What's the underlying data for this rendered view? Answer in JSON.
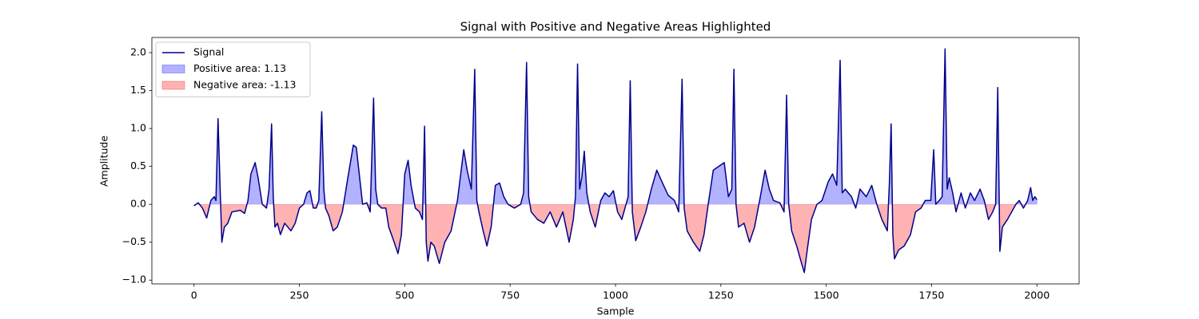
{
  "chart_data": {
    "type": "area-line",
    "title": "Signal with Positive and Negative Areas Highlighted",
    "x_label": "Sample",
    "y_label": "Amplitude",
    "xlim": [
      -100,
      2100
    ],
    "ylim": [
      -1.05,
      2.2
    ],
    "xticks": [
      0,
      250,
      500,
      750,
      1000,
      1250,
      1500,
      1750,
      2000
    ],
    "yticks": [
      {
        "value": -1.0,
        "label": "−1.0"
      },
      {
        "value": -0.5,
        "label": "−0.5"
      },
      {
        "value": 0.0,
        "label": "0.0"
      },
      0.5,
      {
        "value": 1.0,
        "label": "1.0"
      },
      1.5,
      {
        "value": 2.0,
        "label": "2.0"
      }
    ],
    "legend": "upper left",
    "series": [
      {
        "name": "Signal",
        "color": "#00008b",
        "x": [
          0,
          10,
          20,
          30,
          40,
          48,
          52,
          57,
          62,
          66,
          72,
          80,
          90,
          110,
          120,
          128,
          135,
          145,
          152,
          162,
          172,
          178,
          184,
          188,
          192,
          198,
          205,
          215,
          230,
          240,
          250,
          260,
          268,
          275,
          283,
          290,
          296,
          303,
          308,
          312,
          320,
          330,
          340,
          352,
          365,
          378,
          385,
          392,
          400,
          410,
          418,
          426,
          431,
          436,
          445,
          455,
          462,
          475,
          484,
          492,
          500,
          508,
          515,
          525,
          535,
          542,
          547,
          551,
          555,
          562,
          570,
          582,
          595,
          610,
          625,
          640,
          648,
          658,
          666,
          671,
          676,
          686,
          695,
          705,
          715,
          725,
          735,
          745,
          760,
          775,
          782,
          789,
          794,
          800,
          815,
          830,
          845,
          860,
          875,
          890,
          900,
          905,
          910,
          915,
          920,
          926,
          932,
          940,
          952,
          965,
          975,
          985,
          995,
          1005,
          1015,
          1025,
          1030,
          1035,
          1040,
          1048,
          1060,
          1072,
          1085,
          1098,
          1110,
          1125,
          1140,
          1150,
          1158,
          1163,
          1170,
          1185,
          1200,
          1210,
          1220,
          1232,
          1245,
          1258,
          1268,
          1276,
          1281,
          1286,
          1292,
          1305,
          1318,
          1330,
          1342,
          1355,
          1365,
          1375,
          1390,
          1400,
          1406,
          1411,
          1418,
          1430,
          1440,
          1448,
          1455,
          1465,
          1478,
          1490,
          1505,
          1515,
          1525,
          1533,
          1538,
          1545,
          1560,
          1570,
          1580,
          1595,
          1608,
          1620,
          1632,
          1645,
          1650,
          1654,
          1658,
          1662,
          1672,
          1685,
          1700,
          1712,
          1725,
          1735,
          1748,
          1755,
          1760,
          1768,
          1775,
          1782,
          1787,
          1792,
          1800,
          1808,
          1820,
          1830,
          1842,
          1852,
          1865,
          1875,
          1885,
          1895,
          1902,
          1907,
          1912,
          1918,
          1930,
          1940,
          1950,
          1958,
          1968,
          1978,
          1985,
          1990,
          1995,
          2000
        ],
        "values": [
          -0.02,
          0.02,
          -0.05,
          -0.18,
          0.05,
          0.1,
          0.05,
          1.13,
          0.2,
          -0.5,
          -0.3,
          -0.25,
          -0.1,
          -0.08,
          -0.12,
          0.05,
          0.4,
          0.55,
          0.35,
          0.0,
          -0.05,
          0.2,
          1.06,
          0.1,
          -0.3,
          -0.25,
          -0.4,
          -0.25,
          -0.35,
          -0.25,
          -0.05,
          0.0,
          0.15,
          0.18,
          -0.05,
          -0.05,
          0.05,
          1.22,
          0.2,
          -0.05,
          -0.15,
          -0.35,
          -0.3,
          -0.1,
          0.35,
          0.78,
          0.75,
          0.4,
          0.0,
          0.02,
          -0.1,
          1.4,
          0.2,
          0.0,
          -0.05,
          -0.05,
          -0.3,
          -0.5,
          -0.65,
          -0.4,
          0.4,
          0.58,
          0.25,
          -0.05,
          -0.1,
          -0.2,
          1.03,
          -0.5,
          -0.75,
          -0.5,
          -0.55,
          -0.78,
          -0.5,
          -0.35,
          0.05,
          0.72,
          0.45,
          0.2,
          1.78,
          0.05,
          -0.1,
          -0.35,
          -0.55,
          -0.3,
          0.25,
          0.28,
          0.1,
          0.0,
          -0.05,
          0.0,
          0.15,
          1.87,
          0.1,
          -0.1,
          -0.2,
          -0.25,
          -0.1,
          -0.3,
          -0.1,
          -0.5,
          -0.2,
          0.1,
          1.85,
          0.2,
          0.35,
          0.7,
          0.15,
          -0.1,
          -0.3,
          0.05,
          0.15,
          0.1,
          0.18,
          -0.1,
          -0.2,
          0.0,
          0.1,
          1.63,
          -0.1,
          -0.48,
          -0.3,
          -0.1,
          0.2,
          0.45,
          0.3,
          0.12,
          0.05,
          -0.1,
          1.65,
          -0.05,
          -0.35,
          -0.5,
          -0.62,
          -0.4,
          0.0,
          0.45,
          0.5,
          0.55,
          0.1,
          0.2,
          1.78,
          0.0,
          -0.3,
          -0.25,
          -0.5,
          -0.3,
          0.05,
          0.45,
          0.2,
          0.05,
          0.02,
          -0.1,
          1.44,
          0.0,
          -0.35,
          -0.55,
          -0.75,
          -0.9,
          -0.6,
          -0.2,
          0.0,
          0.05,
          0.3,
          0.4,
          0.25,
          1.9,
          0.15,
          0.2,
          0.1,
          -0.05,
          0.2,
          0.1,
          0.25,
          0.0,
          -0.2,
          -0.35,
          0.3,
          1.06,
          -0.4,
          -0.72,
          -0.6,
          -0.55,
          -0.4,
          -0.1,
          -0.05,
          0.05,
          0.05,
          0.72,
          0.0,
          0.05,
          0.1,
          2.05,
          0.2,
          0.35,
          0.15,
          -0.1,
          0.15,
          -0.05,
          0.15,
          0.05,
          0.2,
          0.05,
          -0.2,
          -0.1,
          0.0,
          1.54,
          -0.62,
          -0.3,
          -0.2,
          -0.1,
          0.0,
          0.05,
          -0.05,
          0.05,
          0.22,
          0.05,
          0.1,
          0.06
        ]
      }
    ],
    "areas": [
      {
        "name": "Positive area: 1.13",
        "color": "#0000ff",
        "side": "positive"
      },
      {
        "name": "Negative area: -1.13",
        "color": "#ff0000",
        "side": "negative"
      }
    ]
  }
}
